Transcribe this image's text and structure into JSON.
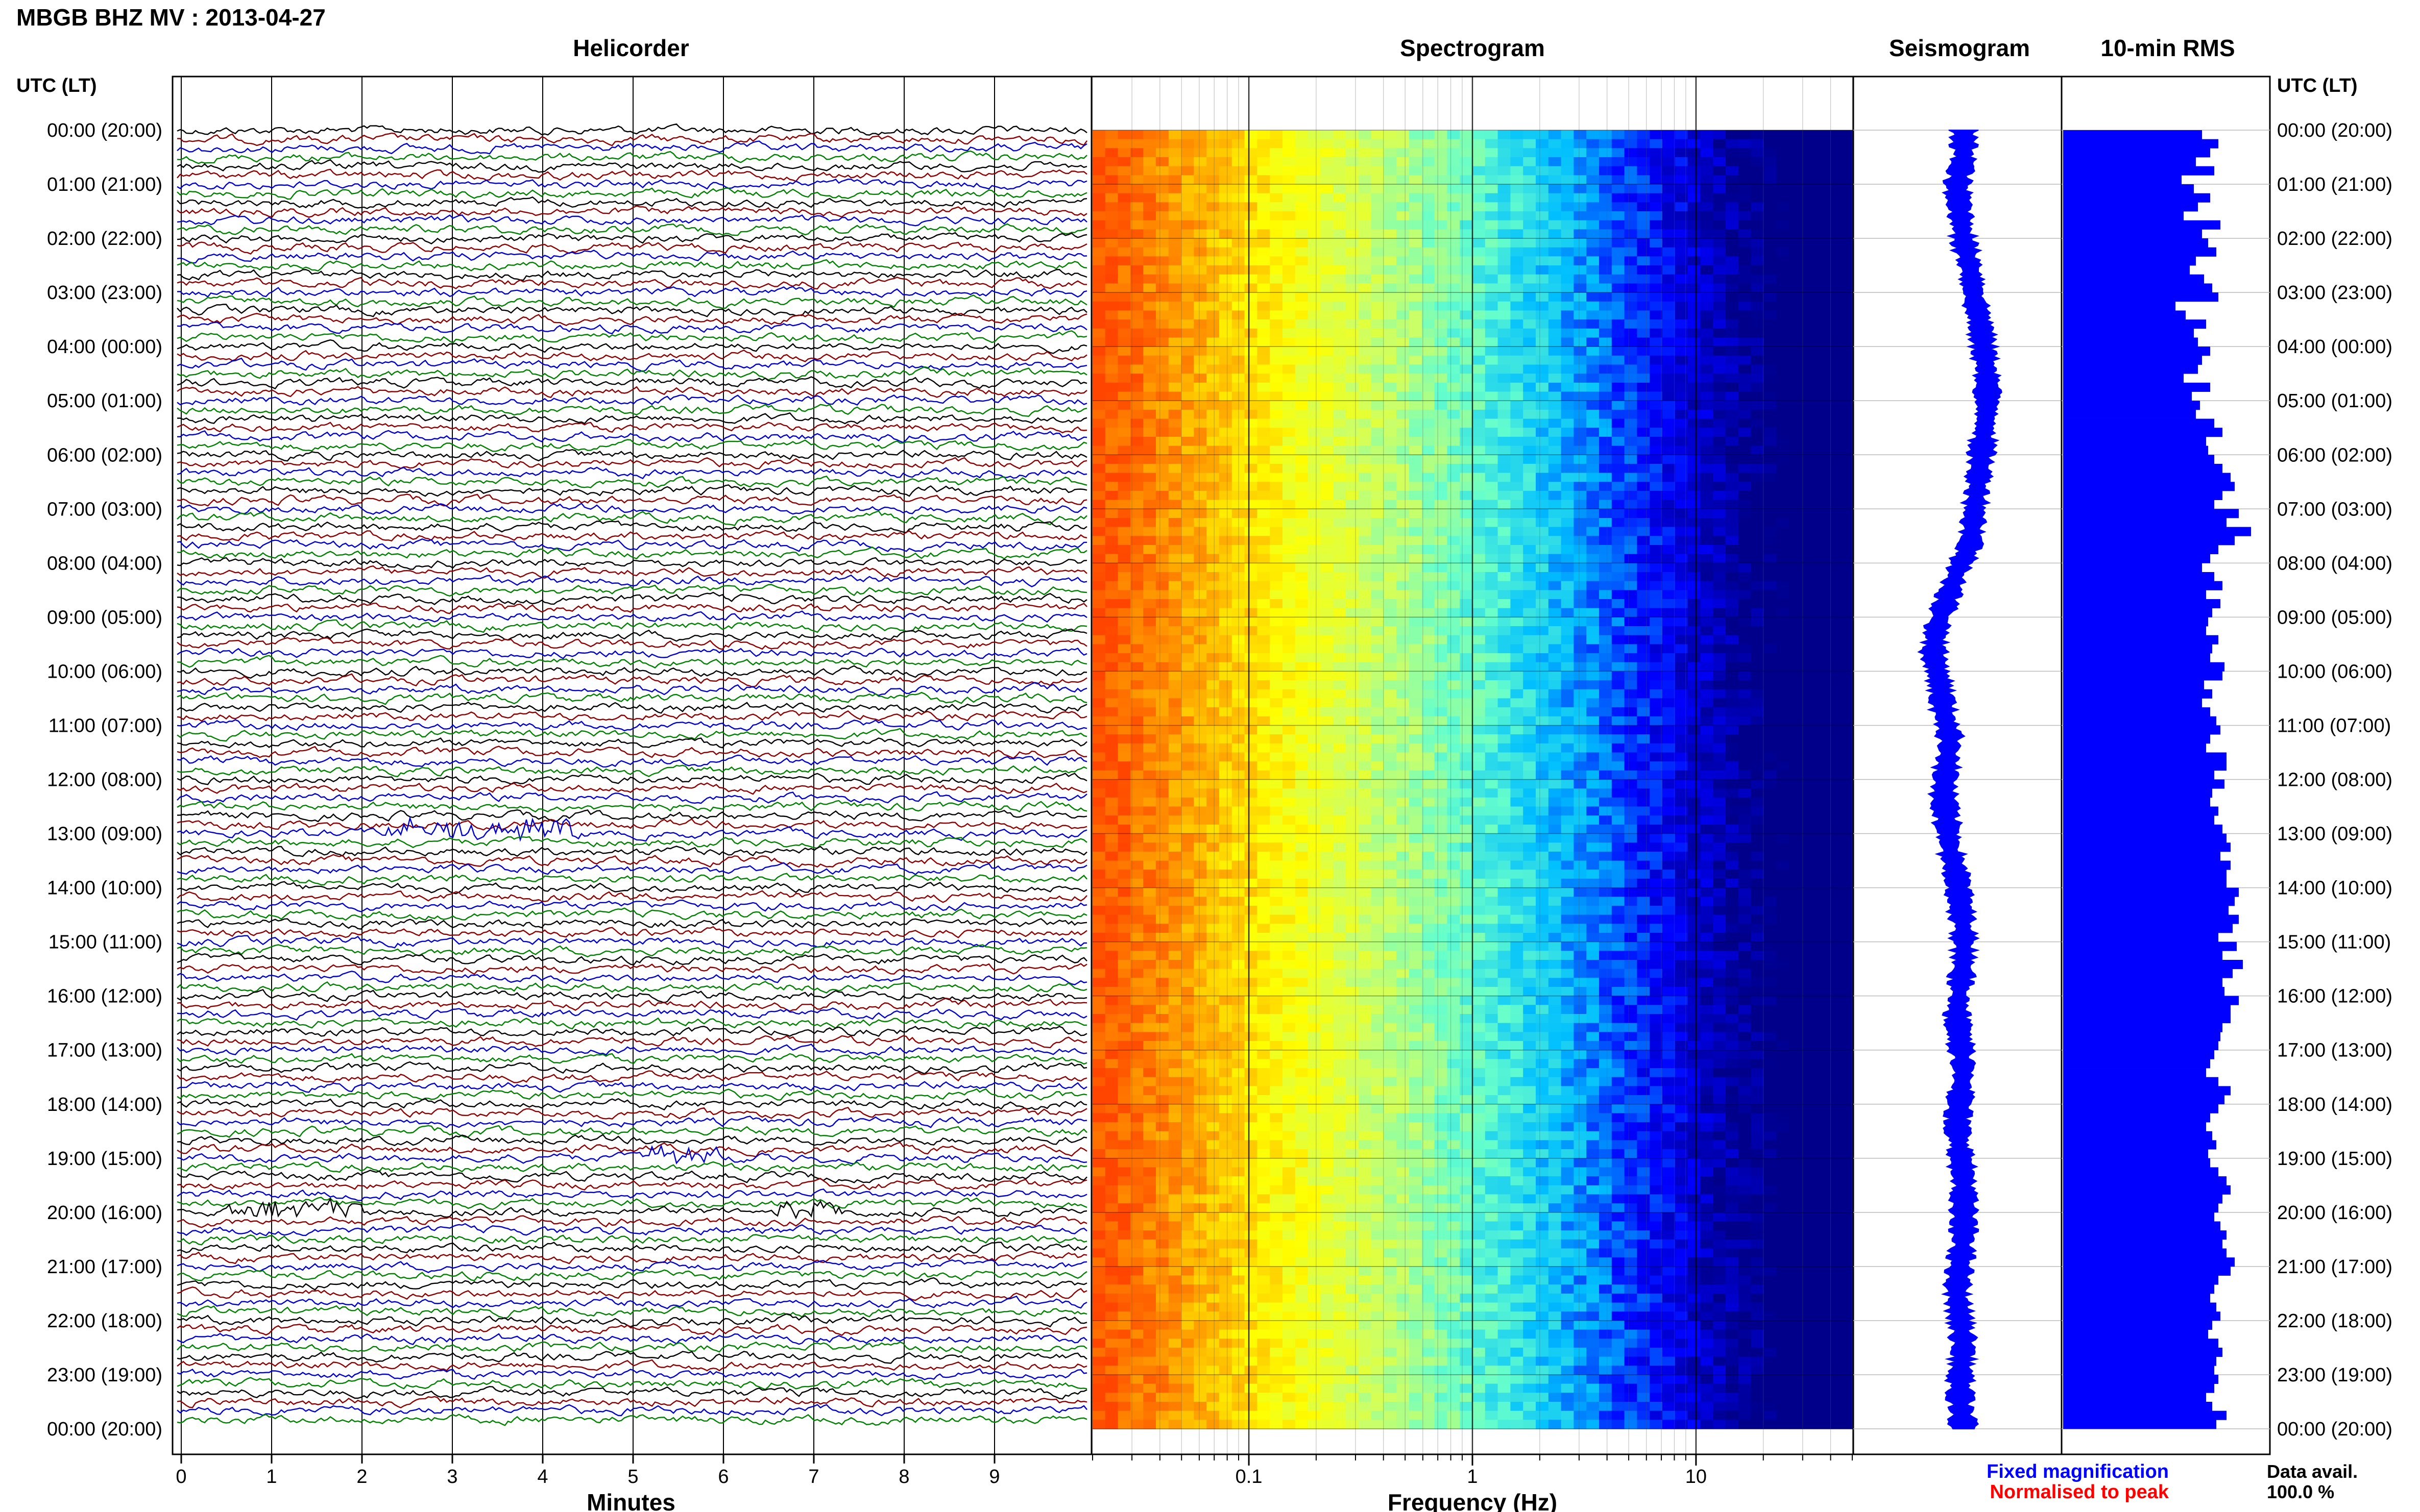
{
  "header": {
    "station_title": "MBGB BHZ MV : 2013-04-27",
    "utc_lt_label": "UTC (LT)"
  },
  "panels": {
    "helicorder": "Helicorder",
    "spectrogram": "Spectrogram",
    "seismogram": "Seismogram",
    "rms": "10-min RMS"
  },
  "colors": {
    "helicorder_traces": [
      "#000000",
      "#8b0000",
      "#0000cc",
      "#008000"
    ],
    "seismogram_fill": "#0000ff",
    "rms_fill": "#0000ff",
    "fixed_magnification": "#0000ff",
    "normalised_to_peak": "#ff0000",
    "spectrogram_colormap": [
      "#00008b",
      "#0000ff",
      "#00bfff",
      "#66ffcc",
      "#ccff66",
      "#ffff00",
      "#ffa500",
      "#ff4500"
    ]
  },
  "chart_data": [
    {
      "type": "line",
      "panel": "Helicorder",
      "xlabel": "Minutes",
      "xlim": [
        0,
        10
      ],
      "x_ticks": [
        "0",
        "1",
        "2",
        "3",
        "4",
        "5",
        "6",
        "7",
        "8",
        "9"
      ],
      "rows_per_hour": 6,
      "time_labels": [
        "00:00 (20:00)",
        "01:00 (21:00)",
        "02:00 (22:00)",
        "03:00 (23:00)",
        "04:00 (00:00)",
        "05:00 (01:00)",
        "06:00 (02:00)",
        "07:00 (03:00)",
        "08:00 (04:00)",
        "09:00 (05:00)",
        "10:00 (06:00)",
        "11:00 (07:00)",
        "12:00 (08:00)",
        "13:00 (09:00)",
        "14:00 (10:00)",
        "15:00 (11:00)",
        "16:00 (12:00)",
        "17:00 (13:00)",
        "18:00 (14:00)",
        "19:00 (15:00)",
        "20:00 (16:00)",
        "21:00 (17:00)",
        "22:00 (18:00)",
        "23:00 (19:00)",
        "00:00 (20:00)"
      ],
      "events": [
        {
          "time": "13:00",
          "minute_start": 2.2,
          "minute_end": 4.4
        },
        {
          "time": "19:00",
          "minute_start": 5.2,
          "minute_end": 6.0
        },
        {
          "time": "20:00",
          "minute_start": 0.5,
          "minute_end": 2.0
        },
        {
          "time": "20:00",
          "minute_start": 6.6,
          "minute_end": 7.3
        }
      ]
    },
    {
      "type": "heatmap",
      "panel": "Spectrogram",
      "xlabel": "Frequency (Hz)",
      "x_scale": "log",
      "xlim": [
        0.02,
        50
      ],
      "x_ticks": [
        "0.1",
        "1",
        "10"
      ]
    },
    {
      "type": "area",
      "panel": "Seismogram",
      "samples": [
        0,
        0,
        -2,
        -1,
        0,
        2,
        3,
        5,
        6,
        7,
        7,
        6,
        5,
        4,
        3,
        2,
        -2,
        -5,
        -8,
        -9,
        -7,
        -6,
        -4,
        -5,
        -6,
        -5,
        -4,
        -2,
        -1,
        0,
        0,
        -1,
        -2,
        -1,
        0,
        -1,
        -2,
        -1,
        0,
        0,
        0,
        -1,
        -2,
        -1,
        0,
        -1,
        -1,
        0
      ],
      "amplitude_scale": 30
    },
    {
      "type": "bar",
      "panel": "10-min RMS",
      "orientation": "horizontal",
      "bins": 144,
      "values": [
        0.68,
        0.76,
        0.72,
        0.65,
        0.74,
        0.58,
        0.64,
        0.72,
        0.66,
        0.59,
        0.77,
        0.68,
        0.71,
        0.75,
        0.65,
        0.62,
        0.69,
        0.73,
        0.76,
        0.55,
        0.6,
        0.7,
        0.64,
        0.66,
        0.72,
        0.68,
        0.66,
        0.59,
        0.72,
        0.63,
        0.67,
        0.65,
        0.74,
        0.78,
        0.7,
        0.71,
        0.74,
        0.78,
        0.82,
        0.84,
        0.78,
        0.74,
        0.86,
        0.8,
        0.92,
        0.84,
        0.76,
        0.72,
        0.68,
        0.74,
        0.78,
        0.7,
        0.77,
        0.73,
        0.71,
        0.7,
        0.76,
        0.73,
        0.72,
        0.79,
        0.78,
        0.69,
        0.73,
        0.68,
        0.72,
        0.75,
        0.77,
        0.72,
        0.7,
        0.8,
        0.8,
        0.74,
        0.79,
        0.73,
        0.72,
        0.76,
        0.74,
        0.78,
        0.8,
        0.82,
        0.77,
        0.82,
        0.8,
        0.8,
        0.86,
        0.84,
        0.81,
        0.86,
        0.83,
        0.76,
        0.85,
        0.78,
        0.88,
        0.83,
        0.78,
        0.79,
        0.86,
        0.82,
        0.82,
        0.78,
        0.77,
        0.76,
        0.74,
        0.72,
        0.7,
        0.76,
        0.82,
        0.79,
        0.76,
        0.72,
        0.7,
        0.73,
        0.75,
        0.71,
        0.72,
        0.76,
        0.8,
        0.82,
        0.78,
        0.76,
        0.74,
        0.77,
        0.8,
        0.78,
        0.8,
        0.84,
        0.82,
        0.76,
        0.74,
        0.72,
        0.75,
        0.77,
        0.73,
        0.71,
        0.76,
        0.78,
        0.75,
        0.74,
        0.76,
        0.74,
        0.7,
        0.73,
        0.8,
        0.75
      ]
    }
  ],
  "footer": {
    "x_label_minutes": "Minutes",
    "x_label_freq": "Frequency (Hz)",
    "legend_fixed": "Fixed magnification",
    "legend_normalised": "Normalised to peak",
    "data_avail_label": "Data avail.",
    "data_avail_value": "100.0 %"
  }
}
